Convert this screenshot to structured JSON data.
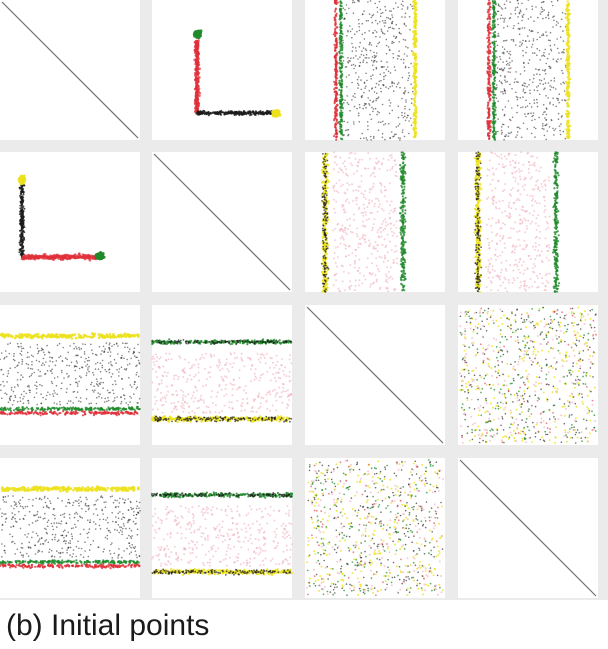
{
  "caption": "(b) Initial points",
  "chart_data": {
    "type": "scatter",
    "layout": "scatterplot-matrix",
    "grid": false,
    "n_dimensions": 4,
    "axis_range": [
      0,
      1
    ],
    "colors": {
      "black": "#1c1c1c",
      "red": "#e0303a",
      "green": "#1f8a2a",
      "yellow": "#ece21c",
      "pink": "#eeaab8",
      "panel_background": "#ffffff",
      "gap_background": "#ebebeb",
      "diagonal": "#6e6e6e"
    },
    "panels": [
      {
        "row": 0,
        "col": 0,
        "kind": "diagonal"
      },
      {
        "row": 0,
        "col": 1,
        "kind": "l-shape",
        "note": "red vertical arm, black horizontal arm, green top end, yellow right end"
      },
      {
        "row": 0,
        "col": 2,
        "kind": "vertical-bands",
        "bands": [
          "red+green",
          "black",
          "yellow"
        ]
      },
      {
        "row": 0,
        "col": 3,
        "kind": "vertical-bands",
        "bands": [
          "red+green",
          "black",
          "yellow"
        ]
      },
      {
        "row": 1,
        "col": 0,
        "kind": "l-shape",
        "note": "black vertical arm, red horizontal arm, yellow top end, green right end"
      },
      {
        "row": 1,
        "col": 1,
        "kind": "diagonal"
      },
      {
        "row": 1,
        "col": 2,
        "kind": "vertical-bands",
        "bands": [
          "yellow+black",
          "pink",
          "green"
        ]
      },
      {
        "row": 1,
        "col": 3,
        "kind": "vertical-bands",
        "bands": [
          "yellow+black",
          "pink",
          "green"
        ]
      },
      {
        "row": 2,
        "col": 0,
        "kind": "horizontal-bands",
        "bands": [
          "yellow",
          "black",
          "green+red"
        ]
      },
      {
        "row": 2,
        "col": 1,
        "kind": "horizontal-bands",
        "bands": [
          "green+black",
          "pink",
          "yellow+black"
        ]
      },
      {
        "row": 2,
        "col": 2,
        "kind": "diagonal"
      },
      {
        "row": 2,
        "col": 3,
        "kind": "uniform-mix"
      },
      {
        "row": 3,
        "col": 0,
        "kind": "horizontal-bands",
        "bands": [
          "yellow",
          "black",
          "green+red"
        ]
      },
      {
        "row": 3,
        "col": 1,
        "kind": "horizontal-bands",
        "bands": [
          "green+black",
          "pink",
          "yellow+black"
        ]
      },
      {
        "row": 3,
        "col": 2,
        "kind": "uniform-mix"
      },
      {
        "row": 3,
        "col": 3,
        "kind": "diagonal"
      }
    ]
  }
}
